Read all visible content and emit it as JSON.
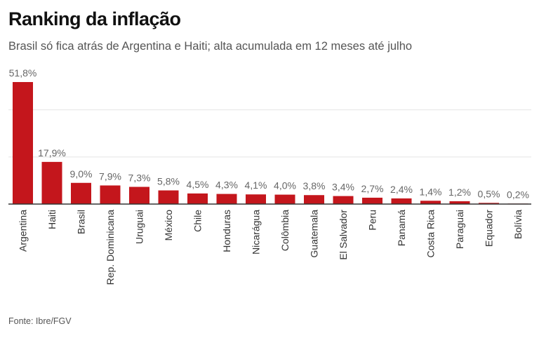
{
  "title": "Ranking da inflação",
  "subtitle": "Brasil só fica atrás de Argentina e Haiti; alta acumulada em 12 meses até julho",
  "source": "Fonte: Ibre/FGV",
  "colors": {
    "bar": "#c4161c",
    "grid": "#e4e4e4",
    "axis": "#333333"
  },
  "chart_data": {
    "type": "bar",
    "title": "Ranking da inflação",
    "xlabel": "",
    "ylabel": "",
    "ylim": [
      0,
      52
    ],
    "grid": true,
    "gridlines": [
      20,
      40
    ],
    "categories": [
      "Argentina",
      "Haiti",
      "Brasil",
      "Rep. Dominicana",
      "Uruguai",
      "México",
      "Chile",
      "Honduras",
      "Nicarágua",
      "Colômbia",
      "Guatemala",
      "El Salvador",
      "Peru",
      "Panamá",
      "Costa Rica",
      "Paraguai",
      "Equador",
      "Bolívia"
    ],
    "values": [
      51.8,
      17.9,
      9.0,
      7.9,
      7.3,
      5.8,
      4.5,
      4.3,
      4.1,
      4.0,
      3.8,
      3.4,
      2.7,
      2.4,
      1.4,
      1.2,
      0.5,
      0.2
    ],
    "labels": [
      "51,8%",
      "17,9%",
      "9,0%",
      "7,9%",
      "7,3%",
      "5,8%",
      "4,5%",
      "4,3%",
      "4,1%",
      "4,0%",
      "3,8%",
      "3,4%",
      "2,7%",
      "2,4%",
      "1,4%",
      "1,2%",
      "0,5%",
      "0,2%"
    ]
  }
}
